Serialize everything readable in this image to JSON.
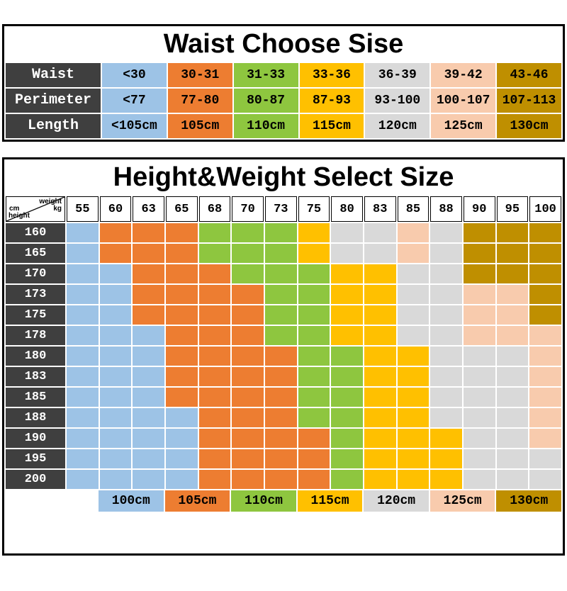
{
  "waist_table": {
    "title": "Waist Choose Sise",
    "rows": [
      {
        "label": "Waist",
        "cells": [
          {
            "text": "<30",
            "color": "B"
          },
          {
            "text": "30-31",
            "color": "O"
          },
          {
            "text": "31-33",
            "color": "G"
          },
          {
            "text": "33-36",
            "color": "Y"
          },
          {
            "text": "36-39",
            "color": "S"
          },
          {
            "text": "39-42",
            "color": "P"
          },
          {
            "text": "43-46",
            "color": "D"
          }
        ]
      },
      {
        "label": "Perimeter",
        "cells": [
          {
            "text": "<77",
            "color": "B"
          },
          {
            "text": "77-80",
            "color": "O"
          },
          {
            "text": "80-87",
            "color": "G"
          },
          {
            "text": "87-93",
            "color": "Y"
          },
          {
            "text": "93-100",
            "color": "S"
          },
          {
            "text": "100-107",
            "color": "P"
          },
          {
            "text": "107-113",
            "color": "D"
          }
        ]
      },
      {
        "label": "Length",
        "cells": [
          {
            "text": "<105cm",
            "color": "B"
          },
          {
            "text": "105cm",
            "color": "O"
          },
          {
            "text": "110cm",
            "color": "G"
          },
          {
            "text": "115cm",
            "color": "Y"
          },
          {
            "text": "120cm",
            "color": "S"
          },
          {
            "text": "125cm",
            "color": "P"
          },
          {
            "text": "130cm",
            "color": "D"
          }
        ]
      }
    ]
  },
  "hw_table": {
    "title": "Height&Weight Select Size",
    "corner": {
      "top_right": "weight",
      "mid_left": "cm",
      "mid_right": "kg",
      "bottom_left": "height"
    },
    "weights": [
      "55",
      "60",
      "63",
      "65",
      "68",
      "70",
      "73",
      "75",
      "80",
      "83",
      "85",
      "88",
      "90",
      "95",
      "100"
    ],
    "rows": [
      {
        "height": "160",
        "cells": "BOOOGGGYSSPSDDD"
      },
      {
        "height": "165",
        "cells": "BOOOGGGYSSPSDDD"
      },
      {
        "height": "170",
        "cells": "BBOOOGGGYYSSDDD"
      },
      {
        "height": "173",
        "cells": "BBOOOOGGYYSSPPD"
      },
      {
        "height": "175",
        "cells": "BBOOOOGGYYSSPPD"
      },
      {
        "height": "178",
        "cells": "BBBOOOGGYYSSPPP"
      },
      {
        "height": "180",
        "cells": "BBBOOOOGGYYSSSP"
      },
      {
        "height": "183",
        "cells": "BBBOOOOGGYYSSSP"
      },
      {
        "height": "185",
        "cells": "BBBOOOOGGYYSSSP"
      },
      {
        "height": "188",
        "cells": "BBBBOOOGGYYSSSP"
      },
      {
        "height": "190",
        "cells": "BBBBOOOOGYYYSSP"
      },
      {
        "height": "195",
        "cells": "BBBBOOOOGYYYSSS"
      },
      {
        "height": "200",
        "cells": "BBBBOOOOGYYYSSS"
      }
    ],
    "legend": [
      {
        "label": "100cm",
        "color": "B"
      },
      {
        "label": "105cm",
        "color": "O"
      },
      {
        "label": "110cm",
        "color": "G"
      },
      {
        "label": "115cm",
        "color": "Y"
      },
      {
        "label": "120cm",
        "color": "S"
      },
      {
        "label": "125cm",
        "color": "P"
      },
      {
        "label": "130cm",
        "color": "D"
      }
    ]
  },
  "colors": {
    "B": "#9DC3E6",
    "O": "#ED7D31",
    "G": "#8EC63F",
    "Y": "#FFC000",
    "S": "#D9D9D9",
    "P": "#F8CBAD",
    "D": "#BF8F00",
    "W": "#FFFFFF",
    "label_bg": "#3F3F3F",
    "border": "#000000"
  },
  "size_key": {
    "B": "100cm",
    "O": "105cm",
    "G": "110cm",
    "Y": "115cm",
    "S": "120cm",
    "P": "125cm",
    "D": "130cm"
  },
  "chart_data": [
    {
      "type": "table",
      "title": "Waist Choose Sise",
      "row_labels": [
        "Waist",
        "Perimeter",
        "Length"
      ],
      "rows": [
        [
          "<30",
          "30-31",
          "31-33",
          "33-36",
          "36-39",
          "39-42",
          "43-46"
        ],
        [
          "<77",
          "77-80",
          "80-87",
          "87-93",
          "93-100",
          "100-107",
          "107-113"
        ],
        [
          "<105cm",
          "105cm",
          "110cm",
          "115cm",
          "120cm",
          "125cm",
          "130cm"
        ]
      ],
      "column_colors": [
        "#9DC3E6",
        "#ED7D31",
        "#8EC63F",
        "#FFC000",
        "#D9D9D9",
        "#F8CBAD",
        "#BF8F00"
      ]
    },
    {
      "type": "heatmap",
      "title": "Height&Weight Select Size",
      "x": [
        "55",
        "60",
        "63",
        "65",
        "68",
        "70",
        "73",
        "75",
        "80",
        "83",
        "85",
        "88",
        "90",
        "95",
        "100"
      ],
      "xlabel": "weight kg",
      "y": [
        "160",
        "165",
        "170",
        "173",
        "175",
        "178",
        "180",
        "183",
        "185",
        "188",
        "190",
        "195",
        "200"
      ],
      "ylabel": "height cm",
      "values_key": {
        "B": "100cm",
        "O": "105cm",
        "G": "110cm",
        "Y": "115cm",
        "S": "120cm",
        "P": "125cm",
        "D": "130cm"
      },
      "values": [
        "BOOOGGGYSSPSDDD",
        "BOOOGGGYSSPSDDD",
        "BBOOOGGGYYSSDDD",
        "BBOOOOGGYYSSPPD",
        "BBOOOOGGYYSSPPD",
        "BBBOOOGGYYSSPPP",
        "BBBOOOOGGYYSSSP",
        "BBBOOOOGGYYSSSP",
        "BBBOOOOGGYYSSSP",
        "BBBBOOOGGYYSSSP",
        "BBBBOOOOGYYYSSP",
        "BBBBOOOOGYYYSSS",
        "BBBBOOOOGYYYSSS"
      ],
      "legend_position": "bottom",
      "legend": [
        "100cm",
        "105cm",
        "110cm",
        "115cm",
        "120cm",
        "125cm",
        "130cm"
      ]
    }
  ]
}
